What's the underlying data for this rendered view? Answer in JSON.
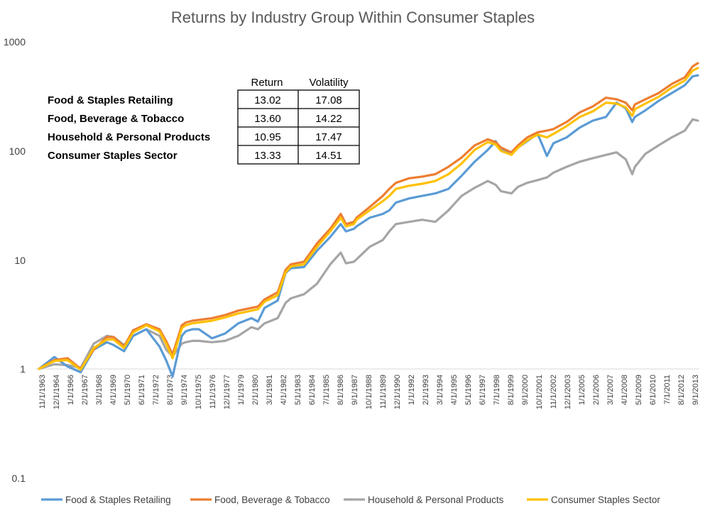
{
  "chart_data": {
    "type": "line",
    "title": "Returns by Industry Group Within Consumer Staples",
    "xlabel": "",
    "ylabel": "",
    "y_scale": "log",
    "ylim": [
      0.1,
      1000
    ],
    "y_ticks": [
      "0.1",
      "1",
      "10",
      "100",
      "1000"
    ],
    "grid": false,
    "legend_position": "bottom",
    "x_tick_labels": [
      "11/1/1963",
      "12/1/1964",
      "1/1/1966",
      "2/1/1967",
      "3/1/1968",
      "4/1/1969",
      "5/1/1970",
      "6/1/1971",
      "7/1/1972",
      "8/1/1973",
      "9/1/1974",
      "10/1/1975",
      "11/1/1976",
      "12/1/1977",
      "1/1/1979",
      "2/1/1980",
      "3/1/1981",
      "4/1/1982",
      "5/1/1983",
      "6/1/1984",
      "7/1/1985",
      "8/1/1986",
      "9/1/1987",
      "10/1/1988",
      "11/1/1989",
      "12/1/1990",
      "1/1/1992",
      "2/1/1993",
      "3/1/1994",
      "4/1/1995",
      "5/1/1996",
      "6/1/1997",
      "7/1/1998",
      "8/1/1999",
      "9/1/2000",
      "10/1/2001",
      "11/1/2002",
      "12/1/2003",
      "1/1/2005",
      "2/1/2006",
      "3/1/2007",
      "4/1/2008",
      "5/1/2009",
      "6/1/2010",
      "7/1/2011",
      "8/1/2012",
      "9/1/2013"
    ],
    "x": [
      1963.83,
      1965.0,
      1966.0,
      1967.0,
      1968.0,
      1969.0,
      1969.5,
      1970.3,
      1971.0,
      1972.0,
      1973.0,
      1973.5,
      1974.0,
      1974.7,
      1975.0,
      1975.5,
      1976.0,
      1977.0,
      1978.0,
      1979.0,
      1980.0,
      1980.5,
      1981.0,
      1982.0,
      1982.6,
      1983.0,
      1984.0,
      1985.0,
      1986.0,
      1986.8,
      1987.2,
      1987.8,
      1988.0,
      1989.0,
      1990.0,
      1990.5,
      1991.0,
      1992.0,
      1993.0,
      1994.0,
      1995.0,
      1996.0,
      1997.0,
      1998.0,
      1998.6,
      1999.0,
      1999.8,
      2000.3,
      2001.0,
      2001.8,
      2002.5,
      2003.0,
      2004.0,
      2005.0,
      2006.0,
      2007.0,
      2007.8,
      2008.5,
      2009.0,
      2009.2,
      2010.0,
      2011.0,
      2012.0,
      2013.0,
      2013.6,
      2014.0
    ],
    "series": [
      {
        "name": "Food & Staples Retailing",
        "color": "#5B9BD5",
        "values": [
          1.0,
          1.28,
          1.05,
          0.93,
          1.5,
          1.75,
          1.65,
          1.45,
          2.0,
          2.3,
          1.6,
          1.2,
          0.85,
          2.0,
          2.2,
          2.3,
          2.3,
          1.9,
          2.1,
          2.6,
          2.9,
          2.7,
          3.6,
          4.2,
          7.5,
          8.3,
          8.5,
          12,
          16,
          21,
          18,
          19,
          20,
          24,
          26,
          28,
          33,
          36,
          38,
          40,
          44,
          58,
          78,
          100,
          120,
          100,
          92,
          105,
          120,
          140,
          88,
          115,
          130,
          160,
          185,
          200,
          270,
          240,
          180,
          200,
          230,
          280,
          330,
          390,
          470,
          480
        ]
      },
      {
        "name": "Food, Beverage & Tobacco",
        "color": "#ED7D31",
        "values": [
          1.0,
          1.2,
          1.25,
          1.0,
          1.5,
          1.95,
          1.95,
          1.6,
          2.25,
          2.55,
          2.3,
          1.8,
          1.35,
          2.5,
          2.65,
          2.75,
          2.8,
          2.9,
          3.1,
          3.4,
          3.6,
          3.7,
          4.3,
          5.0,
          8.0,
          9.0,
          9.5,
          14,
          19,
          26,
          21,
          22,
          24,
          30,
          38,
          44,
          50,
          55,
          57,
          60,
          70,
          85,
          110,
          125,
          118,
          105,
          95,
          110,
          130,
          145,
          150,
          155,
          180,
          220,
          250,
          300,
          290,
          270,
          230,
          260,
          290,
          330,
          400,
          460,
          580,
          620
        ]
      },
      {
        "name": "Household & Personal Products",
        "color": "#A5A5A5",
        "values": [
          1.0,
          1.1,
          1.08,
          1.02,
          1.7,
          2.0,
          1.95,
          1.65,
          2.0,
          2.3,
          2.0,
          1.5,
          1.3,
          1.7,
          1.75,
          1.8,
          1.8,
          1.75,
          1.8,
          2.0,
          2.4,
          2.3,
          2.6,
          2.9,
          4.0,
          4.4,
          4.8,
          6.0,
          9.0,
          11.5,
          9.2,
          9.5,
          10.0,
          13,
          15,
          18,
          21,
          22,
          23,
          22,
          28,
          38,
          45,
          52,
          48,
          42,
          40,
          46,
          50,
          53,
          56,
          62,
          70,
          78,
          84,
          90,
          95,
          82,
          60,
          70,
          92,
          110,
          130,
          150,
          190,
          185
        ]
      },
      {
        "name": "Consumer Staples Sector",
        "color": "#FFC000",
        "values": [
          1.0,
          1.18,
          1.2,
          0.98,
          1.55,
          1.85,
          1.85,
          1.55,
          2.15,
          2.5,
          2.2,
          1.7,
          1.25,
          2.35,
          2.5,
          2.6,
          2.65,
          2.75,
          2.95,
          3.2,
          3.4,
          3.5,
          4.1,
          4.7,
          7.6,
          8.6,
          9.0,
          13,
          18,
          24,
          20,
          21,
          23,
          28,
          34,
          38,
          44,
          47,
          49,
          52,
          60,
          75,
          100,
          118,
          112,
          98,
          90,
          105,
          122,
          138,
          130,
          140,
          165,
          200,
          225,
          270,
          265,
          245,
          205,
          235,
          265,
          305,
          370,
          430,
          530,
          560
        ]
      }
    ],
    "table": {
      "headers": [
        "Return",
        "Volatility"
      ],
      "rows": [
        {
          "label": "Food & Staples Retailing",
          "return": "13.02",
          "volatility": "17.08"
        },
        {
          "label": "Food, Beverage & Tobacco",
          "return": "13.60",
          "volatility": "14.22"
        },
        {
          "label": "Household & Personal Products",
          "return": "10.95",
          "volatility": "17.47"
        },
        {
          "label": "Consumer Staples Sector",
          "return": "13.33",
          "volatility": "14.51"
        }
      ]
    }
  }
}
